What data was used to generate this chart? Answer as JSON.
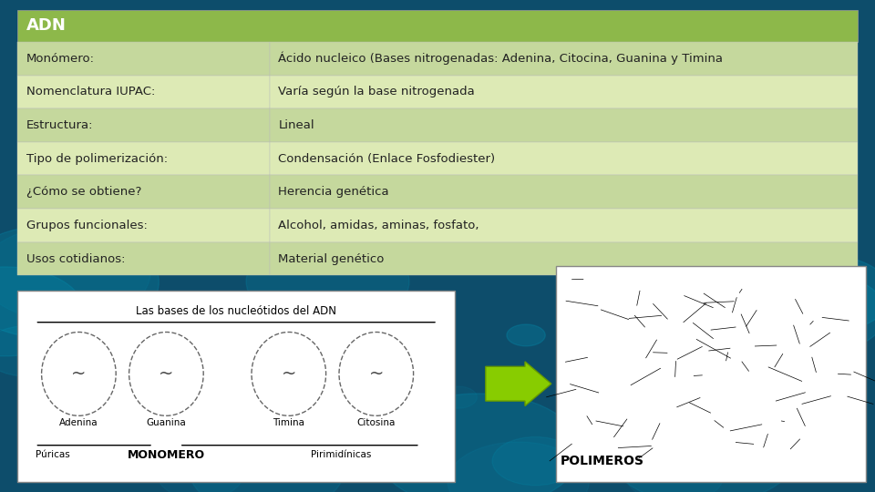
{
  "title": "ADN",
  "title_bg": "#8db84a",
  "title_color": "#ffffff",
  "rows": [
    [
      "Monómero:",
      "Ácido nucleico (Bases nitrogenadas: Adenina, Citocina, Guanina y Timina"
    ],
    [
      "Nomenclatura IUPAC:",
      "Varía según la base nitrogenada"
    ],
    [
      "Estructura:",
      "Lineal"
    ],
    [
      "Tipo de polimerización:",
      "Condensación (Enlace Fosfodiester)"
    ],
    [
      "¿Cómo se obtiene?",
      "Herencia genética"
    ],
    [
      "Grupos funcionales:",
      "Alcohol, amidas, aminas, fosfato,"
    ],
    [
      "Usos cotidianos:",
      "Material genético"
    ]
  ],
  "row_colors_even": "#c5d89d",
  "row_colors_odd": "#ddeab5",
  "text_color": "#222222",
  "font_family": "sans-serif",
  "bottom_left_title": "Las bases de los nucleótidos del ADN",
  "bottom_left_labels": [
    "Adenina",
    "Guanina",
    "Timina",
    "Citosina"
  ],
  "bottom_left_sublabels_left": "Púricas",
  "bottom_left_sublabel_bold": "MONOMERO",
  "bottom_left_sublabels_right": "Pirimidínicas",
  "bottom_right_label": "POLIMEROS",
  "bg_color": "#1a6080"
}
